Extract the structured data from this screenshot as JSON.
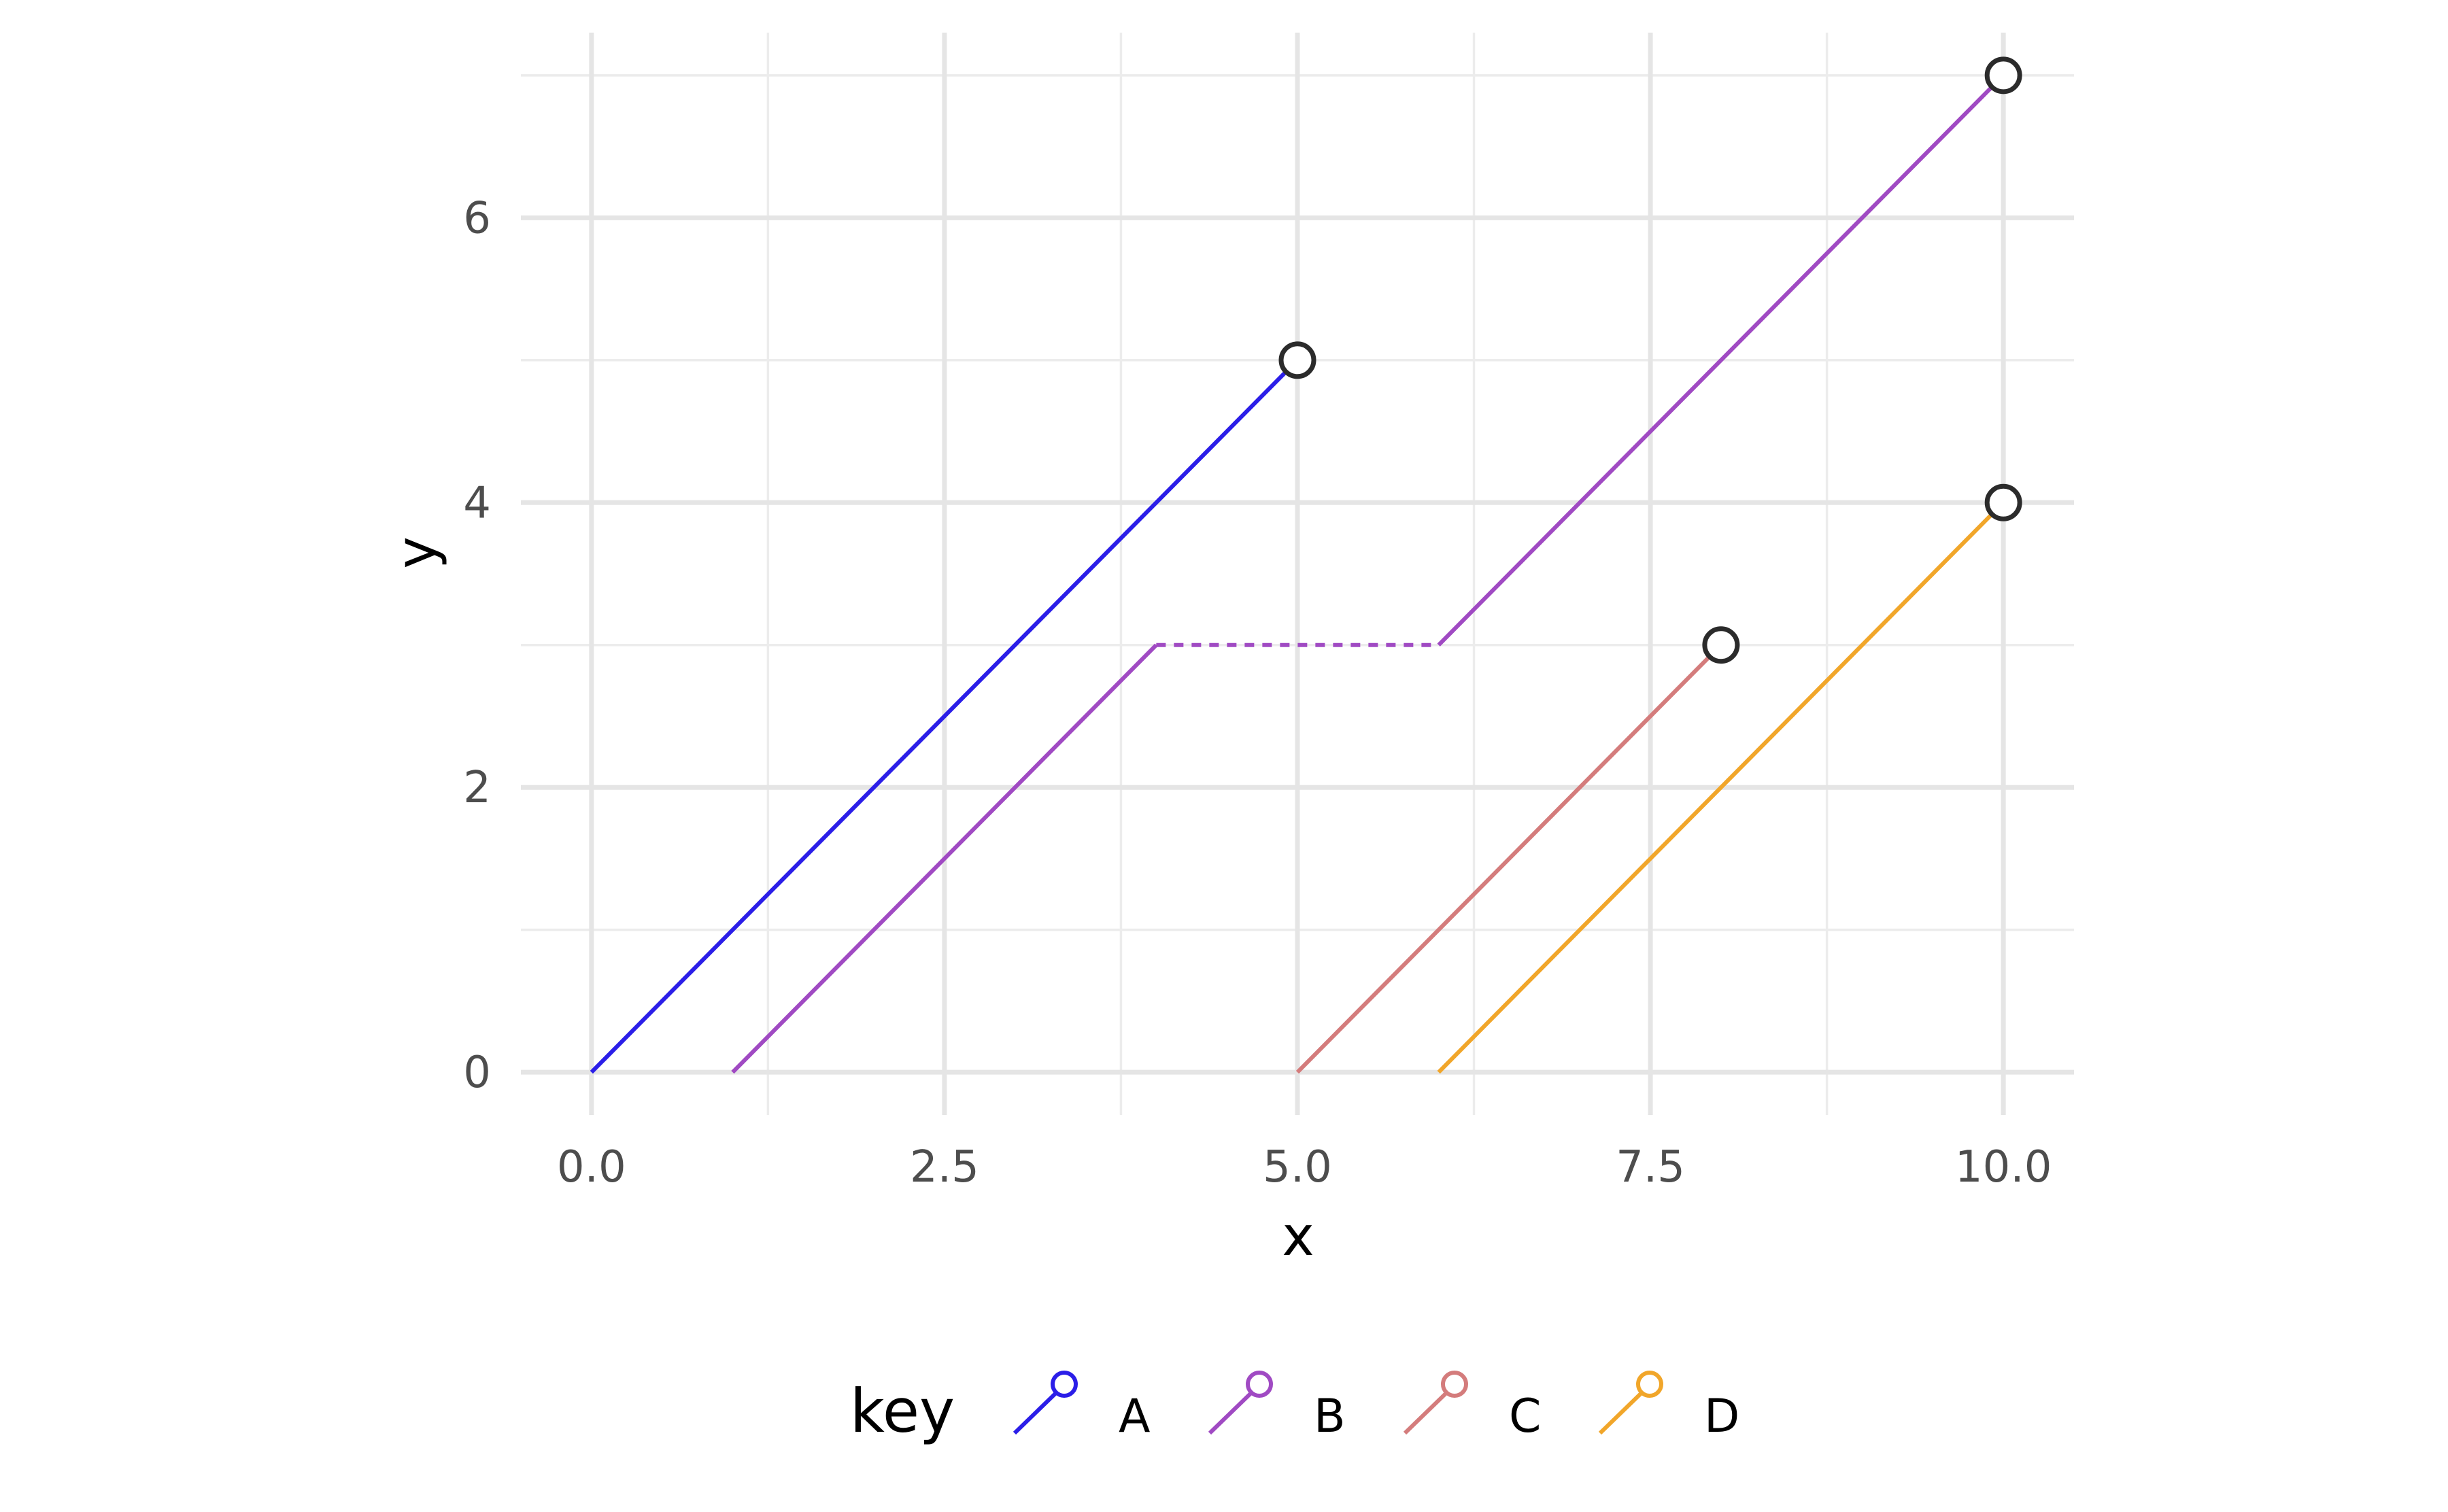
{
  "chart_data": {
    "type": "line",
    "title": "",
    "xlabel": "x",
    "ylabel": "y",
    "xlim": [
      -0.5,
      10.5
    ],
    "ylim": [
      -0.3,
      7.3
    ],
    "x_ticks": [
      0,
      2.5,
      5,
      7.5,
      10
    ],
    "x_tick_labels": [
      "0.0",
      "2.5",
      "5.0",
      "7.5",
      "10.0"
    ],
    "y_ticks": [
      0,
      2,
      4,
      6
    ],
    "y_tick_labels": [
      "0",
      "2",
      "4",
      "6"
    ],
    "x_minor": [
      1.25,
      3.75,
      6.25,
      8.75
    ],
    "y_minor": [
      1,
      3,
      5,
      7
    ],
    "grid": true,
    "legend": {
      "title": "key",
      "position": "bottom",
      "entries": [
        {
          "key": "A",
          "color": "#2b1ee8"
        },
        {
          "key": "B",
          "color": "#a04ac3"
        },
        {
          "key": "C",
          "color": "#d47c7c"
        },
        {
          "key": "D",
          "color": "#f1a62a"
        }
      ]
    },
    "series": [
      {
        "name": "A",
        "color": "#2b1ee8",
        "segments": [
          {
            "x": [
              0,
              5
            ],
            "y": [
              0,
              5
            ],
            "style": "solid"
          }
        ],
        "endpoint": [
          5,
          5
        ]
      },
      {
        "name": "B",
        "color": "#a04ac3",
        "segments": [
          {
            "x": [
              1,
              4
            ],
            "y": [
              0,
              3
            ],
            "style": "solid"
          },
          {
            "x": [
              4,
              6
            ],
            "y": [
              3,
              3
            ],
            "style": "dotted"
          },
          {
            "x": [
              6,
              10
            ],
            "y": [
              3,
              7
            ],
            "style": "solid"
          }
        ],
        "endpoint": [
          10,
          7
        ]
      },
      {
        "name": "C",
        "color": "#d47c7c",
        "segments": [
          {
            "x": [
              5,
              8
            ],
            "y": [
              0,
              3
            ],
            "style": "solid"
          }
        ],
        "endpoint": [
          8,
          3
        ]
      },
      {
        "name": "D",
        "color": "#f1a62a",
        "segments": [
          {
            "x": [
              6,
              10
            ],
            "y": [
              0,
              4
            ],
            "style": "solid"
          }
        ],
        "endpoint": [
          10,
          4
        ]
      }
    ]
  }
}
